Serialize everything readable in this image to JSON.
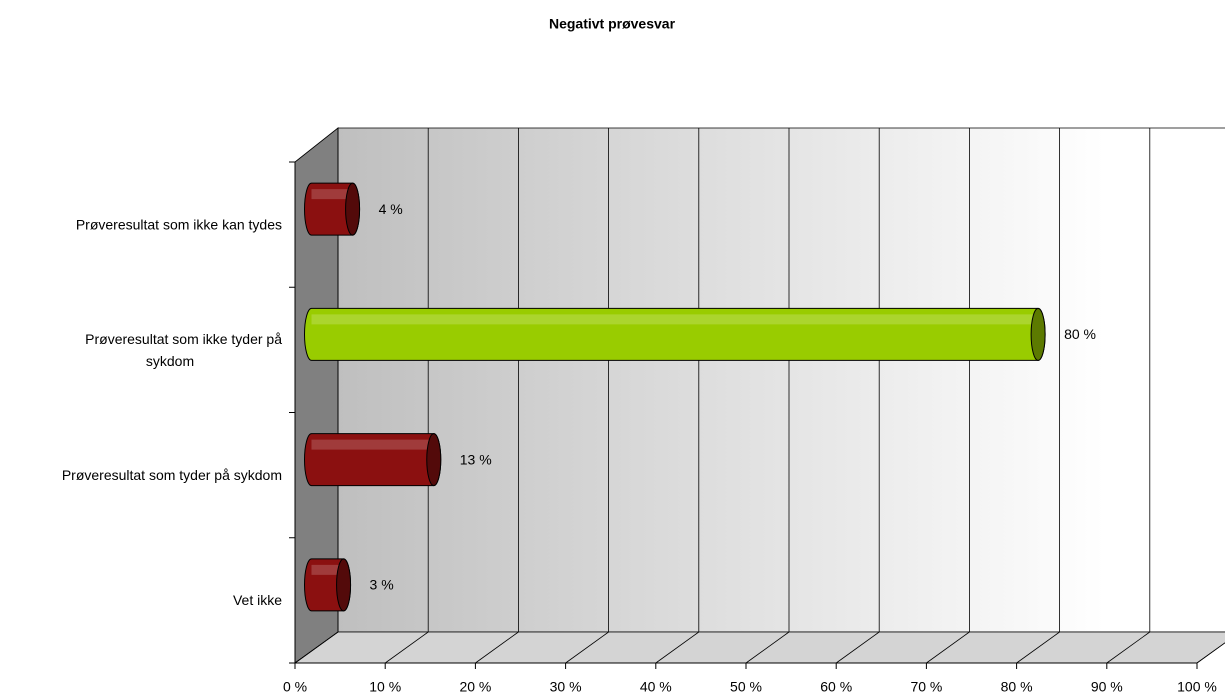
{
  "chart_data": {
    "type": "bar3d-horizontal",
    "title": "Negativt prøvesvar",
    "categories": [
      "Prøveresultat som ikke kan tydes",
      "Prøveresultat som ikke tyder på sykdom",
      "Prøveresultat som tyder på sykdom",
      "Vet ikke"
    ],
    "values": [
      4,
      80,
      13,
      3
    ],
    "value_labels": [
      "4 %",
      "80 %",
      "13 %",
      "3 %"
    ],
    "colors": [
      "#8b1010",
      "#99cc00",
      "#8b1010",
      "#8b1010"
    ],
    "xlim": [
      0,
      100
    ],
    "xticks": [
      {
        "value": 0,
        "label": "0 %"
      },
      {
        "value": 10,
        "label": "10 %"
      },
      {
        "value": 20,
        "label": "20 %"
      },
      {
        "value": 30,
        "label": "30 %"
      },
      {
        "value": 40,
        "label": "40 %"
      },
      {
        "value": 50,
        "label": "50 %"
      },
      {
        "value": 60,
        "label": "60 %"
      },
      {
        "value": 70,
        "label": "70 %"
      },
      {
        "value": 80,
        "label": "80 %"
      },
      {
        "value": 90,
        "label": "90 %"
      },
      {
        "value": 100,
        "label": "100 %"
      }
    ],
    "grid": true
  }
}
